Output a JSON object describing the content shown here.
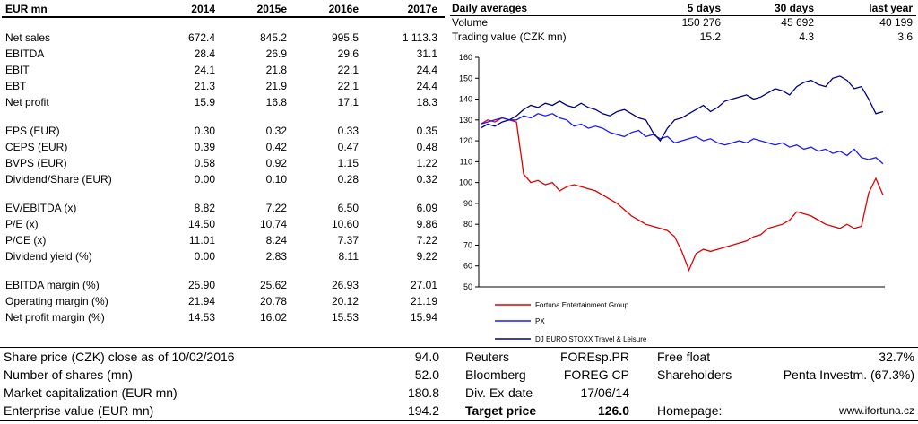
{
  "financials": {
    "header": [
      "EUR mn",
      "2014",
      "2015e",
      "2016e",
      "2017e"
    ],
    "rows": [
      {
        "label": "Net sales",
        "values": [
          "672.4",
          "845.2",
          "995.5",
          "1 113.3"
        ]
      },
      {
        "label": "EBITDA",
        "values": [
          "28.4",
          "26.9",
          "29.6",
          "31.1"
        ]
      },
      {
        "label": "EBIT",
        "values": [
          "24.1",
          "21.8",
          "22.1",
          "24.4"
        ]
      },
      {
        "label": "EBT",
        "values": [
          "21.3",
          "21.9",
          "22.1",
          "24.4"
        ]
      },
      {
        "label": "Net profit",
        "values": [
          "15.9",
          "16.8",
          "17.1",
          "18.3"
        ]
      },
      {
        "label": "EPS (EUR)",
        "values": [
          "0.30",
          "0.32",
          "0.33",
          "0.35"
        ]
      },
      {
        "label": "CEPS (EUR)",
        "values": [
          "0.39",
          "0.42",
          "0.47",
          "0.48"
        ]
      },
      {
        "label": "BVPS (EUR)",
        "values": [
          "0.58",
          "0.92",
          "1.15",
          "1.22"
        ]
      },
      {
        "label": "Dividend/Share (EUR)",
        "values": [
          "0.00",
          "0.10",
          "0.28",
          "0.32"
        ]
      },
      {
        "label": "EV/EBITDA (x)",
        "values": [
          "8.82",
          "7.22",
          "6.50",
          "6.09"
        ]
      },
      {
        "label": "P/E (x)",
        "values": [
          "14.50",
          "10.74",
          "10.60",
          "9.86"
        ]
      },
      {
        "label": "P/CE (x)",
        "values": [
          "11.01",
          "8.24",
          "7.37",
          "7.22"
        ]
      },
      {
        "label": "Dividend yield (%)",
        "values": [
          "0.00",
          "2.83",
          "8.11",
          "9.22"
        ]
      },
      {
        "label": "EBITDA margin (%)",
        "values": [
          "25.90",
          "25.62",
          "26.93",
          "27.01"
        ]
      },
      {
        "label": "Operating margin (%)",
        "values": [
          "21.94",
          "20.78",
          "20.12",
          "21.19"
        ]
      },
      {
        "label": "Net profit margin (%)",
        "values": [
          "14.53",
          "16.02",
          "15.53",
          "15.94"
        ]
      }
    ]
  },
  "daily_averages": {
    "header": [
      "Daily averages",
      "5 days",
      "30 days",
      "last year"
    ],
    "rows": [
      {
        "label": "Volume",
        "values": [
          "150 276",
          "45 692",
          "40 199"
        ]
      },
      {
        "label": "Trading value (CZK mn)",
        "values": [
          "15.2",
          "4.3",
          "3.6"
        ]
      }
    ]
  },
  "chart_data": {
    "type": "line",
    "ylim": [
      50,
      160
    ],
    "yticks": [
      "50",
      "60",
      "70",
      "80",
      "90",
      "100",
      "110",
      "120",
      "130",
      "140",
      "150",
      "160"
    ],
    "grid": false,
    "legend_position": "bottom",
    "colors": {
      "fortuna": "#e00000",
      "px": "#1a1aff",
      "stoxx": "#000080"
    },
    "series": [
      {
        "name": "Fortuna Entertainment Group",
        "color": "#e00000",
        "values": [
          128,
          130,
          129,
          131,
          130,
          129,
          104,
          100,
          101,
          99,
          100,
          96,
          98,
          99,
          98,
          97,
          96,
          94,
          92,
          90,
          87,
          84,
          82,
          80,
          79,
          78,
          77,
          74,
          67,
          58,
          66,
          68,
          67,
          68,
          69,
          70,
          71,
          72,
          74,
          75,
          78,
          79,
          80,
          82,
          86,
          85,
          84,
          82,
          80,
          79,
          78,
          80,
          78,
          79,
          95,
          102,
          94
        ]
      },
      {
        "name": "PX",
        "color": "#1a1aff",
        "values": [
          128,
          129,
          130,
          131,
          130,
          130,
          132,
          131,
          133,
          132,
          133,
          131,
          130,
          127,
          128,
          126,
          127,
          126,
          124,
          123,
          122,
          124,
          125,
          122,
          123,
          121,
          122,
          119,
          120,
          121,
          122,
          120,
          121,
          119,
          118,
          119,
          120,
          119,
          121,
          120,
          119,
          118,
          119,
          117,
          118,
          116,
          117,
          115,
          116,
          114,
          115,
          113,
          116,
          112,
          111,
          112,
          109
        ]
      },
      {
        "name": "DJ EURO STOXX Travel & Leisure",
        "color": "#000080",
        "values": [
          126,
          128,
          127,
          129,
          130,
          132,
          135,
          137,
          136,
          138,
          137,
          139,
          137,
          136,
          138,
          136,
          135,
          133,
          132,
          134,
          135,
          133,
          131,
          130,
          124,
          120,
          126,
          130,
          131,
          133,
          135,
          137,
          134,
          136,
          139,
          140,
          141,
          142,
          140,
          141,
          143,
          145,
          144,
          142,
          146,
          148,
          149,
          147,
          146,
          150,
          151,
          149,
          145,
          146,
          140,
          133,
          134
        ]
      }
    ]
  },
  "bottom_info": {
    "share_price_label": "Share price (CZK) close as of 10/02/2016",
    "share_price_value": "94.0",
    "shares_label": "Number of shares (mn)",
    "shares_value": "52.0",
    "market_cap_label": "Market capitalization (EUR mn)",
    "market_cap_value": "180.8",
    "ev_label": "Enterprise value (EUR mn)",
    "ev_value": "194.2",
    "reuters_label": "Reuters",
    "reuters_value": "FOREsp.PR",
    "bloomberg_label": "Bloomberg",
    "bloomberg_value": "FOREG CP",
    "div_ex_label": "Div. Ex-date",
    "div_ex_value": "17/06/14",
    "target_label": "Target price",
    "target_value": "126.0",
    "free_float_label": "Free float",
    "free_float_value": "32.7%",
    "shareholders_label": "Shareholders",
    "shareholders_value": "Penta Investm. (67.3%)",
    "homepage_label": "Homepage:",
    "homepage_value": "www.ifortuna.cz"
  }
}
